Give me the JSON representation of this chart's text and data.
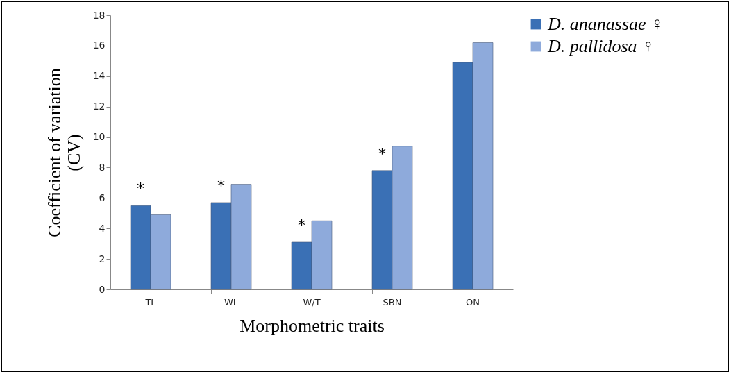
{
  "chart_data": {
    "type": "bar",
    "xlabel": "Morphometric traits",
    "ylabel": "Coefficient of variation (CV)",
    "categories": [
      "TL",
      "WL",
      "W/T",
      "SBN",
      "ON"
    ],
    "series": [
      {
        "name": "D. ananassae ♀",
        "color": "#3a70b5",
        "values": [
          5.5,
          5.7,
          3.1,
          7.8,
          14.9
        ]
      },
      {
        "name": "D. pallidosa ♀",
        "color": "#8eaadb",
        "values": [
          4.9,
          6.9,
          4.5,
          9.4,
          16.2
        ]
      }
    ],
    "ylim": [
      0,
      18
    ],
    "yticks": [
      0,
      2,
      4,
      6,
      8,
      10,
      12,
      14,
      16,
      18
    ],
    "grid": false,
    "legend": "right",
    "annotations": [
      {
        "text": "*",
        "x": "TL",
        "y": 5.5
      },
      {
        "text": "*",
        "x": "WL",
        "y": 5.7
      },
      {
        "text": "*",
        "x": "W/T",
        "y": 3.1
      },
      {
        "text": "*",
        "x": "SBN",
        "y": 7.8
      }
    ]
  }
}
